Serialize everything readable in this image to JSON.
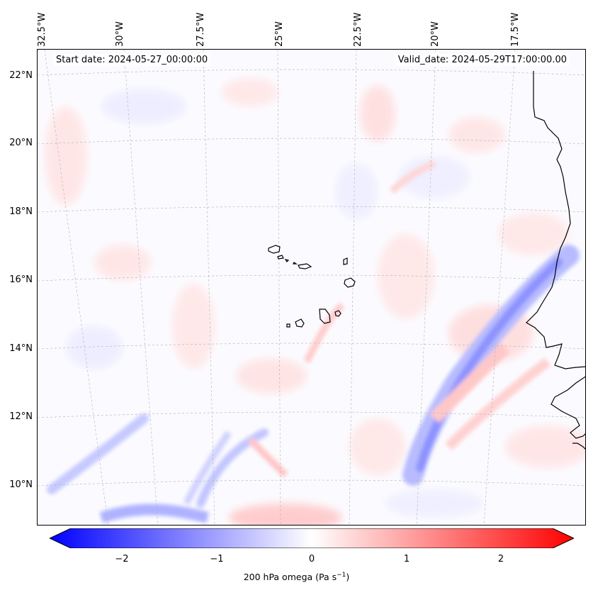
{
  "map": {
    "start_date": "Start date: 2024-05-27_00:00:00",
    "valid_date": "Valid_date: 2024-05-29T17:00:00.00",
    "lon_labels": [
      "32.5°W",
      "30°W",
      "27.5°W",
      "25°W",
      "22.5°W",
      "20°W",
      "17.5°W"
    ],
    "lat_labels": [
      "22°N",
      "20°N",
      "18°N",
      "16°N",
      "14°N",
      "12°N",
      "10°N"
    ],
    "colors": {
      "negative": "#0000ff",
      "positive": "#ff0000",
      "neutral": "#ffffff",
      "coastline": "#000000"
    }
  },
  "colorbar": {
    "ticks": [
      "−2",
      "−1",
      "0",
      "1",
      "2"
    ],
    "label_main": "200 hPa omega (Pa s",
    "label_sup": "−1",
    "label_tail": ")",
    "range": [
      -2.6,
      2.6
    ]
  }
}
